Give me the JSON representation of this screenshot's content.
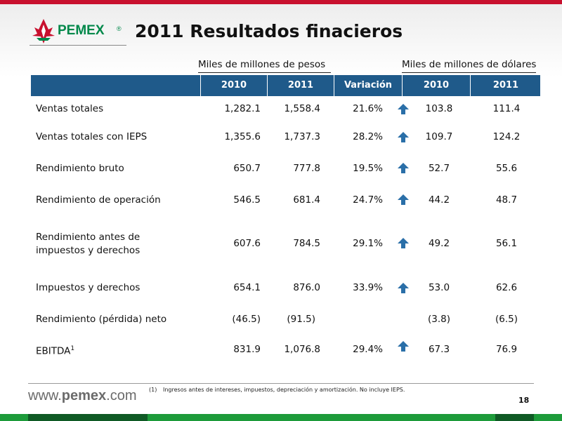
{
  "header": {
    "logo_text": "PEMEX",
    "logo_reg": "®",
    "title": "2011 Resultados finacieros"
  },
  "groups": {
    "pesos": "Miles de millones de pesos",
    "dolares": "Miles de millones de dólares"
  },
  "columns": [
    "2010",
    "2011",
    "Variación",
    "2010",
    "2011"
  ],
  "rows": [
    {
      "label": "Ventas totales",
      "p2010": "1,282.1",
      "p2011": "1,558.4",
      "var": "21.6%",
      "up": true,
      "d2010": "103.8",
      "d2011": "111.4"
    },
    {
      "label": "Ventas totales con IEPS",
      "p2010": "1,355.6",
      "p2011": "1,737.3",
      "var": "28.2%",
      "up": true,
      "d2010": "109.7",
      "d2011": "124.2"
    },
    {
      "label": "Rendimiento bruto",
      "p2010": "650.7",
      "p2011": "777.8",
      "var": "19.5%",
      "up": true,
      "d2010": "52.7",
      "d2011": "55.6"
    },
    {
      "label": "Rendimiento de operación",
      "p2010": "546.5",
      "p2011": "681.4",
      "var": "24.7%",
      "up": true,
      "d2010": "44.2",
      "d2011": "48.7"
    },
    {
      "label": "Rendimiento antes de",
      "label2": "impuestos y derechos",
      "p2010": "607.6",
      "p2011": "784.5",
      "var": "29.1%",
      "up": true,
      "d2010": "49.2",
      "d2011": "56.1"
    },
    {
      "label": "Impuestos y derechos",
      "p2010": "654.1",
      "p2011": "876.0",
      "var": "33.9%",
      "up": true,
      "d2010": "53.0",
      "d2011": "62.6"
    },
    {
      "label": "Rendimiento (pérdida) neto",
      "p2010": "(46.5)",
      "p2011": "(91.5)",
      "var": "",
      "up": false,
      "d2010": "(3.8)",
      "d2011": "(6.5)"
    },
    {
      "label": "EBITDA",
      "sup": "1",
      "p2010": "831.9",
      "p2011": "1,076.8",
      "var": "29.4%",
      "up": true,
      "d2010": "67.3",
      "d2011": "76.9"
    }
  ],
  "footer": {
    "url_prefix": "www.",
    "url_brand": "pemex",
    "url_suffix": ".com",
    "note_num": "(1)",
    "note_text": "Ingresos antes de intereses, impuestos, depreciación y amortización. No incluye IEPS.",
    "page_number": "18"
  },
  "colors": {
    "header_bar": "#1f5a8a",
    "arrow": "#2a6fa8",
    "brand_green": "#00884a",
    "brand_red": "#c8102e"
  },
  "icons": {
    "logo": "pemex-eagle-logo",
    "arrow": "arrow-up-icon"
  }
}
